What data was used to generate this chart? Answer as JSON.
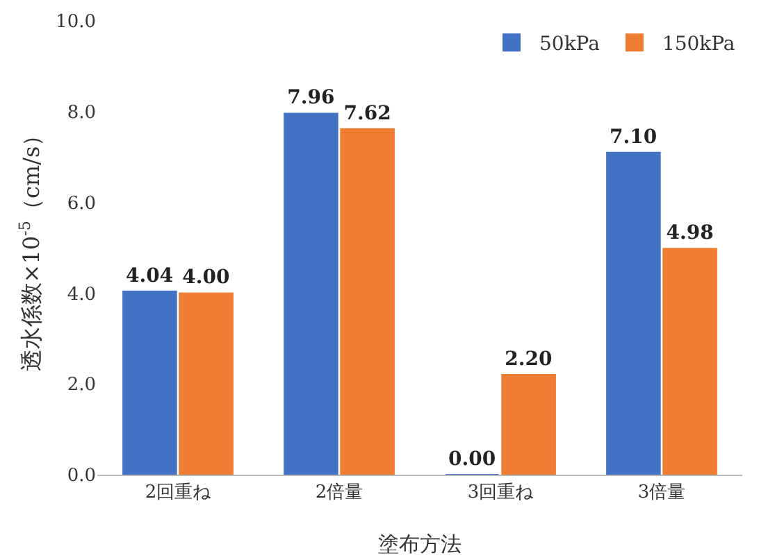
{
  "chart_data": {
    "type": "bar",
    "xlabel": "塗布方法",
    "ylabel": "透水係数×10$^{-5}$（cm/s）",
    "categories": [
      "2回重ね",
      "2倍量",
      "3回重ね",
      "3倍量"
    ],
    "series": [
      {
        "name": "50kPa",
        "color": "#4472c4",
        "values": [
          4.04,
          7.96,
          0.0,
          7.1
        ],
        "value_labels": [
          "4.04",
          "7.96",
          "0.00",
          "7.10"
        ]
      },
      {
        "name": "150kPa",
        "color": "#ed7d31",
        "values": [
          4.0,
          7.62,
          2.2,
          4.98
        ],
        "value_labels": [
          "4.00",
          "7.62",
          "2.20",
          "4.98"
        ]
      }
    ],
    "ylim": [
      0,
      10
    ],
    "yticks": [
      {
        "value": 0,
        "label": "0.0"
      },
      {
        "value": 2,
        "label": "2.0"
      },
      {
        "value": 4,
        "label": "4.0"
      },
      {
        "value": 6,
        "label": "6.0"
      },
      {
        "value": 8,
        "label": "8.0"
      },
      {
        "value": 10,
        "label": "10.0"
      }
    ],
    "legend": "top right"
  }
}
